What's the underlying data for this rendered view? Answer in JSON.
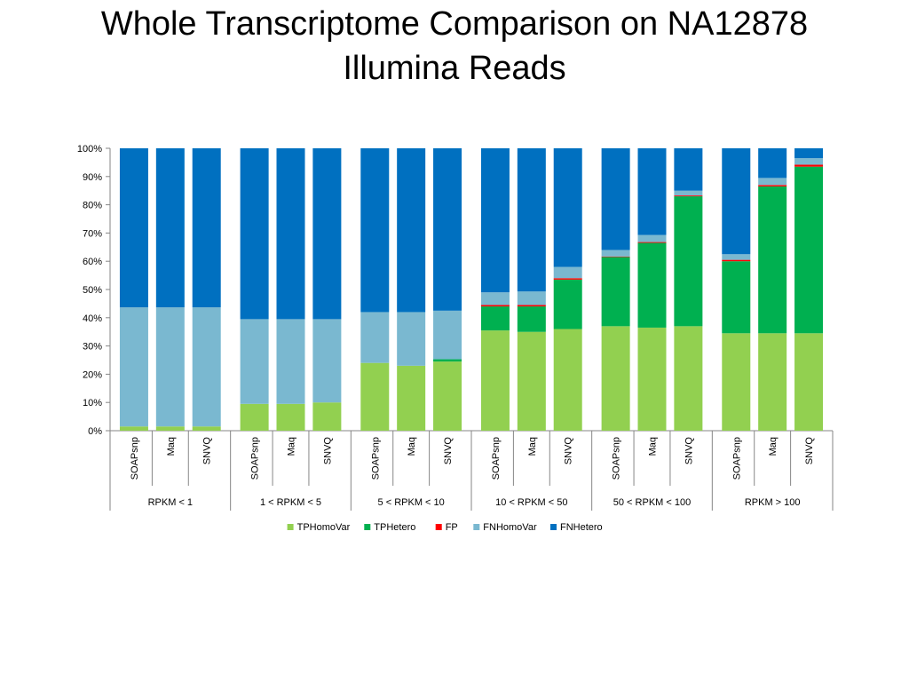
{
  "slide": {
    "title_line1": "Whole Transcriptome Comparison on NA12878",
    "title_line2": "Illumina Reads"
  },
  "chart_data": {
    "type": "bar",
    "stacked": true,
    "percent": true,
    "ylim": [
      0,
      100
    ],
    "yticks": [
      "0%",
      "10%",
      "20%",
      "30%",
      "40%",
      "50%",
      "60%",
      "70%",
      "80%",
      "90%",
      "100%"
    ],
    "grid": false,
    "legend_position": "bottom",
    "groups": [
      {
        "label": "RPKM < 1",
        "bars": [
          {
            "label": "SOAPsnp",
            "values": [
              1.5,
              0.0,
              0.0,
              42.2,
              56.3
            ]
          },
          {
            "label": "Maq",
            "values": [
              1.5,
              0.0,
              0.0,
              42.2,
              56.3
            ]
          },
          {
            "label": "SNVQ",
            "values": [
              1.5,
              0.0,
              0.0,
              42.2,
              56.3
            ]
          }
        ]
      },
      {
        "label": "1 < RPKM < 5",
        "bars": [
          {
            "label": "SOAPsnp",
            "values": [
              9.5,
              0.0,
              0.0,
              30.0,
              60.5
            ]
          },
          {
            "label": "Maq",
            "values": [
              9.5,
              0.0,
              0.0,
              30.0,
              60.5
            ]
          },
          {
            "label": "SNVQ",
            "values": [
              10.0,
              0.0,
              0.0,
              29.5,
              60.5
            ]
          }
        ]
      },
      {
        "label": "5 < RPKM < 10",
        "bars": [
          {
            "label": "SOAPsnp",
            "values": [
              24.0,
              0.0,
              0.0,
              18.0,
              58.0
            ]
          },
          {
            "label": "Maq",
            "values": [
              23.0,
              0.0,
              0.0,
              19.0,
              58.0
            ]
          },
          {
            "label": "SNVQ",
            "values": [
              24.5,
              0.8,
              0.0,
              17.2,
              57.5
            ]
          }
        ]
      },
      {
        "label": "10 < RPKM < 50",
        "bars": [
          {
            "label": "SOAPsnp",
            "values": [
              35.5,
              8.5,
              0.5,
              4.5,
              51.0
            ]
          },
          {
            "label": "Maq",
            "values": [
              35.0,
              9.0,
              0.5,
              4.8,
              50.7
            ]
          },
          {
            "label": "SNVQ",
            "values": [
              36.0,
              17.5,
              0.5,
              4.0,
              42.0
            ]
          }
        ]
      },
      {
        "label": "50 < RPKM < 100",
        "bars": [
          {
            "label": "SOAPsnp",
            "values": [
              37.0,
              24.5,
              0.2,
              2.3,
              36.0
            ]
          },
          {
            "label": "Maq",
            "values": [
              36.5,
              30.0,
              0.3,
              2.5,
              30.7
            ]
          },
          {
            "label": "SNVQ",
            "values": [
              37.0,
              46.0,
              0.3,
              1.7,
              15.0
            ]
          }
        ]
      },
      {
        "label": "RPKM > 100",
        "bars": [
          {
            "label": "SOAPsnp",
            "values": [
              34.5,
              25.5,
              0.5,
              2.0,
              37.5
            ]
          },
          {
            "label": "Maq",
            "values": [
              34.5,
              52.0,
              0.5,
              2.5,
              10.5
            ]
          },
          {
            "label": "SNVQ",
            "values": [
              34.5,
              59.0,
              0.7,
              2.3,
              3.5
            ]
          }
        ]
      }
    ],
    "series": [
      {
        "name": "TPHomoVar",
        "color": "#92D050"
      },
      {
        "name": "TPHetero",
        "color": "#00B050"
      },
      {
        "name": "FP",
        "color": "#FF0000"
      },
      {
        "name": "FNHomoVar",
        "color": "#7AB8D0"
      },
      {
        "name": "FNHetero",
        "color": "#0070C0"
      }
    ]
  }
}
